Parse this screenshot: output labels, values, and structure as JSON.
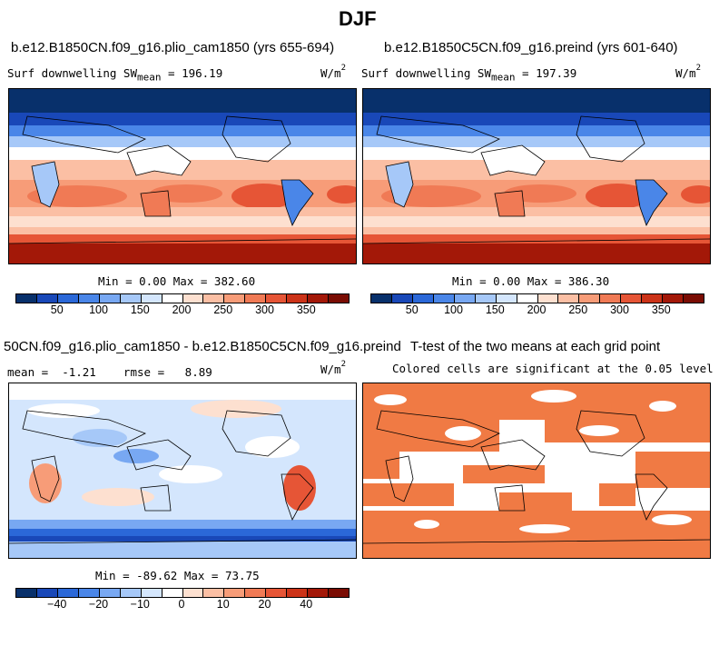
{
  "figure_title": "DJF",
  "panels": {
    "top_left": {
      "title": "b.e12.B1850CN.f09_g16.plio_cam1850 (yrs 655-694)",
      "variable": "Surf downwelling SW",
      "mean_label": "mean",
      "mean_value": "= 196.19",
      "units_base": "W/m",
      "units_exp": "2",
      "min_max": "Min =    0.00 Max = 382.60"
    },
    "top_right": {
      "title": "b.e12.B1850C5CN.f09_g16.preind (yrs 601-640)",
      "variable": "Surf downwelling SW",
      "mean_label": "mean",
      "mean_value": "= 197.39",
      "units_base": "W/m",
      "units_exp": "2",
      "min_max": "Min =    0.00 Max = 386.30"
    },
    "bottom_left": {
      "title": "50CN.f09_g16.plio_cam1850 - b.e12.B1850C5CN.f09_g16.preind",
      "stats": "mean =  -1.21    rmse =   8.89",
      "units_base": "W/m",
      "units_exp": "2",
      "min_max": "Min = -89.62 Max =  73.75"
    },
    "bottom_right": {
      "title": "T-test of the two means at each grid point",
      "subtitle": "Colored cells are significant at the 0.05 level"
    }
  },
  "colorbars": {
    "absolute": {
      "colors": [
        "#08306b",
        "#1948b8",
        "#2b68d8",
        "#4a86e8",
        "#78a8f2",
        "#a6c8f8",
        "#d4e6fd",
        "#ffffff",
        "#fde0d0",
        "#fbbfa4",
        "#f79c78",
        "#f07a55",
        "#e65536",
        "#cc3318",
        "#a31808",
        "#7a0c03"
      ],
      "ticks": [
        "50",
        "100",
        "150",
        "200",
        "250",
        "300",
        "350"
      ]
    },
    "difference": {
      "colors": [
        "#08306b",
        "#1948b8",
        "#2b68d8",
        "#4a86e8",
        "#78a8f2",
        "#a6c8f8",
        "#d4e6fd",
        "#ffffff",
        "#fde0d0",
        "#fbbfa4",
        "#f79c78",
        "#f07a55",
        "#e65536",
        "#cc3318",
        "#a31808",
        "#7a0c03"
      ],
      "ticks": [
        "−40",
        "−20",
        "−10",
        "0",
        "10",
        "20",
        "40"
      ]
    }
  },
  "colors": {
    "significant": "#f07a44",
    "land_outline": "#000000"
  }
}
